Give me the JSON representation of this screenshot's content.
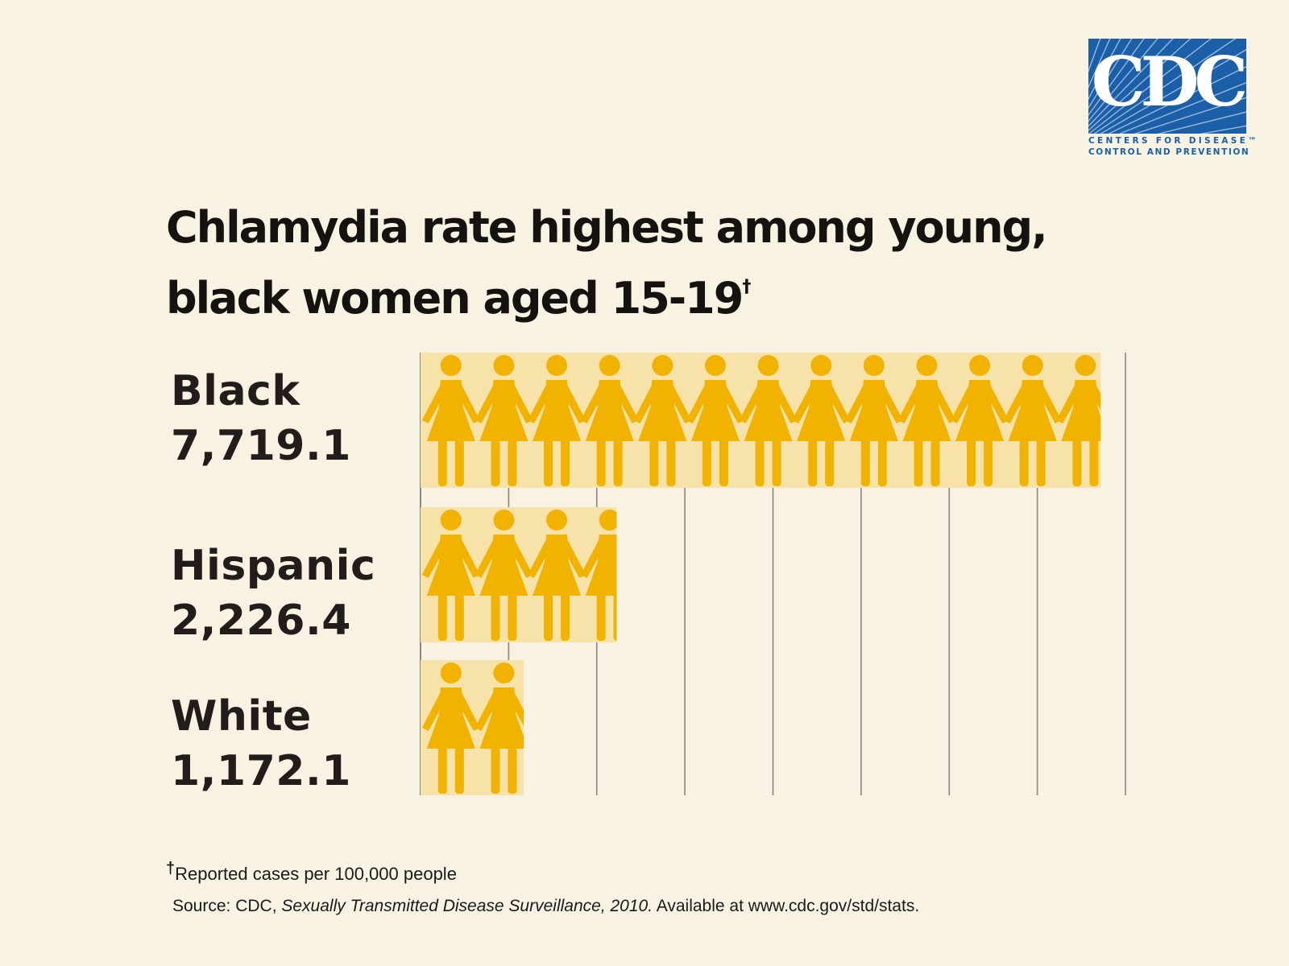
{
  "logo": {
    "text": "CDC",
    "line1": "CENTERS FOR DISEASE™",
    "line2": "CONTROL AND PREVENTION"
  },
  "title": {
    "line1": "Chlamydia rate highest among young,",
    "line2": "black women aged 15-19",
    "dagger": "†"
  },
  "chart_data": {
    "type": "bar",
    "orientation": "horizontal",
    "categories": [
      "Black",
      "Hispanic",
      "White"
    ],
    "values": [
      7719.1,
      2226.4,
      1172.1
    ],
    "value_labels": [
      "7,719.1",
      "2,226.4",
      "1,172.1"
    ],
    "xlim": [
      0,
      8000
    ],
    "grid": true,
    "units_per_figure": 600,
    "colors": {
      "figure": "#f2b300",
      "bar_bg": "#f7e2aa",
      "grid": "#8a8580"
    }
  },
  "footnote": {
    "dagger": "†",
    "text": "Reported cases per 100,000 people"
  },
  "source": {
    "prefix": "Source:  CDC, ",
    "italic": "Sexually Transmitted Disease Surveillance, 2010.",
    "suffix": "  Available at www.cdc.gov/std/stats."
  }
}
